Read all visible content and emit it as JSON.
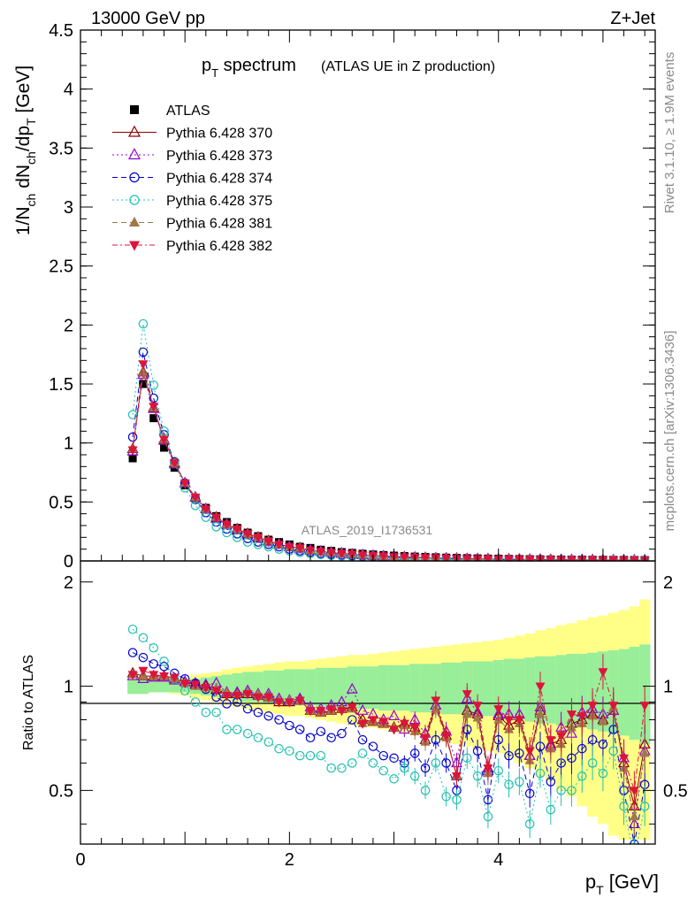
{
  "header": {
    "left": "13000 GeV pp",
    "right": "Z+Jet"
  },
  "side": {
    "rivet": "Rivet 3.1.10, ≥ 1.9M events",
    "mcplots": "mcplots.cern.ch [arXiv:1306.3436]"
  },
  "chart_data": [
    {
      "type": "scatter",
      "panel": "main",
      "title": "p_T spectrum",
      "title_main": "p",
      "title_sub": "T",
      "title_rest": " spectrum",
      "subtitle": "(ATLAS UE in Z production)",
      "analysis_label": "ATLAS_2019_I1736531",
      "ylabel": "1/N_ch dN_ch/dp_T [GeV]",
      "xlim": [
        0,
        5.5
      ],
      "ylim": [
        0,
        4.5
      ],
      "yticks": [
        0,
        0.5,
        1,
        1.5,
        2,
        2.5,
        3,
        3.5,
        4,
        4.5
      ],
      "ytick_labels": [
        "0",
        "0.5",
        "1",
        "1.5",
        "2",
        "2.5",
        "3",
        "3.5",
        "4",
        "4.5"
      ],
      "x": [
        0.5,
        0.6,
        0.7,
        0.8,
        0.9,
        1.0,
        1.1,
        1.2,
        1.3,
        1.4,
        1.5,
        1.6,
        1.7,
        1.8,
        1.9,
        2.0,
        2.1,
        2.2,
        2.3,
        2.4,
        2.5,
        2.6,
        2.7,
        2.8,
        2.9,
        3.0,
        3.1,
        3.2,
        3.3,
        3.4,
        3.5,
        3.6,
        3.7,
        3.8,
        3.9,
        4.0,
        4.1,
        4.2,
        4.3,
        4.4,
        4.5,
        4.6,
        4.7,
        4.8,
        4.9,
        5.0,
        5.1,
        5.2,
        5.3,
        5.4
      ],
      "series": [
        {
          "name": "ATLAS",
          "marker": "square-filled",
          "color": "#000000",
          "dash": "none",
          "values": [
            0.87,
            1.5,
            1.21,
            0.96,
            0.79,
            0.64,
            0.53,
            0.45,
            0.38,
            0.33,
            0.28,
            0.24,
            0.21,
            0.18,
            0.16,
            0.14,
            0.12,
            0.11,
            0.095,
            0.085,
            0.075,
            0.068,
            0.061,
            0.055,
            0.05,
            0.045,
            0.041,
            0.037,
            0.034,
            0.031,
            0.028,
            0.026,
            0.024,
            0.022,
            0.02,
            0.019,
            0.017,
            0.016,
            0.015,
            0.014,
            0.013,
            0.012,
            0.011,
            0.011,
            0.01,
            0.0095,
            0.009,
            0.0085,
            0.008,
            0.0075
          ]
        },
        {
          "name": "Pythia 6.428 370",
          "marker": "triangle-up-open",
          "color": "#8b0000",
          "dash": "none",
          "values": [
            0.95,
            1.6,
            1.3,
            1.03,
            0.83,
            0.66,
            0.54,
            0.44,
            0.37,
            0.31,
            0.27,
            0.23,
            0.2,
            0.17,
            0.14,
            0.12,
            0.11,
            0.09,
            0.08,
            0.07,
            0.064,
            0.057,
            0.05,
            0.045,
            0.041,
            0.036,
            0.033,
            0.03,
            0.027,
            0.024,
            0.022,
            0.02,
            0.018,
            0.017,
            0.016,
            0.015,
            0.014,
            0.013,
            0.012,
            0.011,
            0.01,
            0.0095,
            0.009,
            0.0085,
            0.008,
            0.0075,
            0.007,
            0.0065,
            0.006,
            0.0055
          ]
        },
        {
          "name": "Pythia 6.428 373",
          "marker": "triangle-up-open",
          "color": "#9400d3",
          "dash": "2,3",
          "values": [
            0.93,
            1.58,
            1.29,
            1.02,
            0.82,
            0.66,
            0.54,
            0.44,
            0.36,
            0.31,
            0.26,
            0.22,
            0.19,
            0.16,
            0.14,
            0.12,
            0.1,
            0.09,
            0.08,
            0.07,
            0.063,
            0.056,
            0.05,
            0.045,
            0.04,
            0.036,
            0.033,
            0.03,
            0.027,
            0.024,
            0.022,
            0.02,
            0.018,
            0.017,
            0.016,
            0.015,
            0.014,
            0.013,
            0.012,
            0.011,
            0.01,
            0.0095,
            0.009,
            0.0085,
            0.008,
            0.0075,
            0.007,
            0.0065,
            0.006,
            0.0055
          ]
        },
        {
          "name": "Pythia 6.428 374",
          "marker": "circle-open",
          "color": "#0000cd",
          "dash": "6,4",
          "values": [
            1.05,
            1.77,
            1.38,
            1.07,
            0.84,
            0.66,
            0.52,
            0.41,
            0.33,
            0.27,
            0.23,
            0.19,
            0.16,
            0.14,
            0.12,
            0.1,
            0.085,
            0.075,
            0.065,
            0.057,
            0.05,
            0.045,
            0.04,
            0.036,
            0.032,
            0.029,
            0.026,
            0.024,
            0.021,
            0.019,
            0.017,
            0.016,
            0.014,
            0.013,
            0.012,
            0.011,
            0.01,
            0.0095,
            0.009,
            0.0085,
            0.008,
            0.0075,
            0.007,
            0.0065,
            0.006,
            0.0055,
            0.005,
            0.0048,
            0.0045,
            0.0042
          ]
        },
        {
          "name": "Pythia 6.428 375",
          "marker": "circle-open",
          "color": "#20c0b0",
          "dash": "2,3",
          "values": [
            1.24,
            2.01,
            1.49,
            1.1,
            0.83,
            0.62,
            0.47,
            0.37,
            0.29,
            0.24,
            0.2,
            0.16,
            0.14,
            0.12,
            0.1,
            0.085,
            0.072,
            0.062,
            0.054,
            0.047,
            0.042,
            0.037,
            0.033,
            0.029,
            0.026,
            0.023,
            0.021,
            0.019,
            0.017,
            0.015,
            0.014,
            0.013,
            0.011,
            0.01,
            0.0095,
            0.009,
            0.0085,
            0.008,
            0.0075,
            0.007,
            0.0065,
            0.006,
            0.0055,
            0.005,
            0.0048,
            0.0045,
            0.0042,
            0.004,
            0.0038,
            0.0035
          ]
        },
        {
          "name": "Pythia 6.428 381",
          "marker": "triangle-up-filled",
          "color": "#a0784a",
          "dash": "6,4",
          "values": [
            0.95,
            1.6,
            1.3,
            1.03,
            0.83,
            0.66,
            0.54,
            0.44,
            0.37,
            0.31,
            0.27,
            0.23,
            0.2,
            0.17,
            0.14,
            0.12,
            0.11,
            0.09,
            0.08,
            0.07,
            0.064,
            0.057,
            0.05,
            0.045,
            0.041,
            0.036,
            0.033,
            0.03,
            0.027,
            0.024,
            0.022,
            0.02,
            0.018,
            0.017,
            0.016,
            0.015,
            0.014,
            0.013,
            0.012,
            0.011,
            0.01,
            0.0095,
            0.009,
            0.0085,
            0.008,
            0.0075,
            0.007,
            0.0065,
            0.006,
            0.0055
          ]
        },
        {
          "name": "Pythia 6.428 382",
          "marker": "triangle-down-filled",
          "color": "#dc143c",
          "dash": "6,3,2,3",
          "values": [
            0.94,
            1.67,
            1.31,
            1.03,
            0.83,
            0.66,
            0.54,
            0.44,
            0.37,
            0.31,
            0.27,
            0.23,
            0.2,
            0.17,
            0.14,
            0.12,
            0.11,
            0.09,
            0.08,
            0.07,
            0.064,
            0.057,
            0.05,
            0.045,
            0.041,
            0.036,
            0.033,
            0.03,
            0.027,
            0.024,
            0.022,
            0.02,
            0.018,
            0.017,
            0.016,
            0.015,
            0.014,
            0.013,
            0.012,
            0.011,
            0.01,
            0.0095,
            0.009,
            0.0085,
            0.008,
            0.0075,
            0.007,
            0.0065,
            0.006,
            0.0055
          ]
        }
      ]
    },
    {
      "type": "scatter",
      "panel": "ratio",
      "ylabel": "Ratio to ATLAS",
      "xlabel": "p_T [GeV]",
      "xlabel_main": "p",
      "xlabel_sub": "T",
      "xlabel_rest": " [GeV]",
      "xlim": [
        0,
        5.5
      ],
      "ylim": [
        0.35,
        2.3
      ],
      "xticks": [
        0,
        2,
        4
      ],
      "xtick_labels": [
        "0",
        "2",
        "4"
      ],
      "yticks": [
        0.5,
        1,
        2
      ],
      "ytick_labels": [
        "0.5",
        "1",
        "2"
      ],
      "reference_line": 1,
      "band_green_halfwidth": [
        0.05,
        0.05,
        0.04,
        0.04,
        0.04,
        0.04,
        0.05,
        0.06,
        0.07,
        0.08,
        0.09,
        0.1,
        0.1,
        0.11,
        0.11,
        0.12,
        0.12,
        0.12,
        0.13,
        0.13,
        0.13,
        0.14,
        0.14,
        0.14,
        0.15,
        0.15,
        0.15,
        0.16,
        0.16,
        0.16,
        0.17,
        0.17,
        0.18,
        0.18,
        0.18,
        0.19,
        0.2,
        0.2,
        0.21,
        0.22,
        0.22,
        0.23,
        0.24,
        0.24,
        0.25,
        0.26,
        0.27,
        0.28,
        0.3,
        0.32
      ],
      "band_yellow_halfwidth": [
        0.05,
        0.05,
        0.04,
        0.04,
        0.05,
        0.06,
        0.08,
        0.09,
        0.1,
        0.12,
        0.13,
        0.14,
        0.15,
        0.16,
        0.17,
        0.18,
        0.18,
        0.19,
        0.2,
        0.21,
        0.22,
        0.23,
        0.23,
        0.24,
        0.25,
        0.26,
        0.27,
        0.28,
        0.29,
        0.3,
        0.31,
        0.32,
        0.33,
        0.34,
        0.35,
        0.36,
        0.38,
        0.4,
        0.42,
        0.45,
        0.47,
        0.5,
        0.52,
        0.55,
        0.58,
        0.6,
        0.63,
        0.66,
        0.7,
        0.78
      ],
      "series": [
        {
          "name": "Pythia 6.428 370",
          "values": [
            1.09,
            1.07,
            1.07,
            1.07,
            1.05,
            1.03,
            1.01,
            1.0,
            0.98,
            0.95,
            0.95,
            0.95,
            0.94,
            0.93,
            0.9,
            0.9,
            0.91,
            0.85,
            0.84,
            0.85,
            0.86,
            0.87,
            0.8,
            0.79,
            0.78,
            0.76,
            0.78,
            0.76,
            0.7,
            0.88,
            0.72,
            0.55,
            0.85,
            0.83,
            0.58,
            0.82,
            0.77,
            0.8,
            0.63,
            0.85,
            0.68,
            0.7,
            0.78,
            0.8,
            0.83,
            0.8,
            0.85,
            0.6,
            0.45,
            0.68
          ]
        },
        {
          "name": "Pythia 6.428 373",
          "values": [
            1.07,
            1.05,
            1.06,
            1.06,
            1.04,
            1.03,
            1.02,
            1.01,
            1.02,
            0.96,
            0.96,
            0.97,
            0.95,
            0.95,
            0.92,
            0.91,
            0.92,
            0.87,
            0.86,
            0.88,
            0.9,
            0.98,
            0.85,
            0.83,
            0.8,
            0.82,
            0.75,
            0.8,
            0.73,
            0.88,
            0.74,
            0.6,
            0.92,
            0.84,
            0.57,
            0.83,
            0.83,
            0.83,
            0.63,
            0.87,
            0.67,
            0.76,
            0.73,
            0.84,
            0.86,
            0.83,
            0.85,
            0.62,
            0.4,
            0.65
          ]
        },
        {
          "name": "Pythia 6.428 374",
          "values": [
            1.25,
            1.21,
            1.16,
            1.14,
            1.09,
            1.05,
            1.02,
            0.98,
            0.93,
            0.89,
            0.9,
            0.86,
            0.84,
            0.82,
            0.8,
            0.77,
            0.75,
            0.71,
            0.74,
            0.71,
            0.73,
            0.8,
            0.7,
            0.67,
            0.63,
            0.62,
            0.6,
            0.64,
            0.58,
            0.7,
            0.6,
            0.5,
            0.75,
            0.65,
            0.47,
            0.7,
            0.63,
            0.64,
            0.49,
            0.67,
            0.53,
            0.6,
            0.62,
            0.66,
            0.7,
            0.68,
            0.75,
            0.5,
            0.35,
            0.52
          ]
        },
        {
          "name": "Pythia 6.428 375",
          "values": [
            1.46,
            1.38,
            1.29,
            1.18,
            1.05,
            0.97,
            0.9,
            0.84,
            0.84,
            0.75,
            0.75,
            0.73,
            0.71,
            0.69,
            0.66,
            0.65,
            0.63,
            0.63,
            0.63,
            0.58,
            0.58,
            0.6,
            0.64,
            0.6,
            0.57,
            0.54,
            0.58,
            0.55,
            0.5,
            0.6,
            0.48,
            0.47,
            0.62,
            0.55,
            0.42,
            0.57,
            0.52,
            0.53,
            0.4,
            0.56,
            0.44,
            0.5,
            0.5,
            0.55,
            0.6,
            0.56,
            0.65,
            0.45,
            0.32,
            0.45
          ]
        },
        {
          "name": "Pythia 6.428 381",
          "values": [
            1.08,
            1.07,
            1.07,
            1.07,
            1.05,
            1.02,
            1.0,
            0.99,
            0.99,
            0.96,
            0.95,
            0.96,
            0.95,
            0.93,
            0.91,
            0.91,
            0.91,
            0.85,
            0.84,
            0.85,
            0.86,
            0.86,
            0.78,
            0.79,
            0.78,
            0.76,
            0.77,
            0.74,
            0.69,
            0.86,
            0.71,
            0.55,
            0.83,
            0.81,
            0.56,
            0.8,
            0.75,
            0.78,
            0.61,
            0.83,
            0.66,
            0.68,
            0.76,
            0.78,
            0.82,
            0.79,
            0.87,
            0.58,
            0.42,
            0.64
          ]
        },
        {
          "name": "Pythia 6.428 382",
          "values": [
            1.08,
            1.11,
            1.08,
            1.07,
            1.06,
            1.02,
            1.01,
            0.99,
            0.97,
            0.94,
            0.94,
            0.95,
            0.93,
            0.93,
            0.9,
            0.9,
            0.91,
            0.85,
            0.85,
            0.86,
            0.85,
            0.87,
            0.78,
            0.8,
            0.79,
            0.75,
            0.78,
            0.76,
            0.71,
            0.91,
            0.72,
            0.55,
            0.95,
            0.88,
            0.58,
            0.86,
            0.8,
            0.8,
            0.65,
            1.0,
            0.7,
            0.72,
            0.83,
            0.82,
            0.88,
            1.1,
            0.88,
            0.62,
            0.5,
            0.88
          ]
        }
      ]
    }
  ]
}
